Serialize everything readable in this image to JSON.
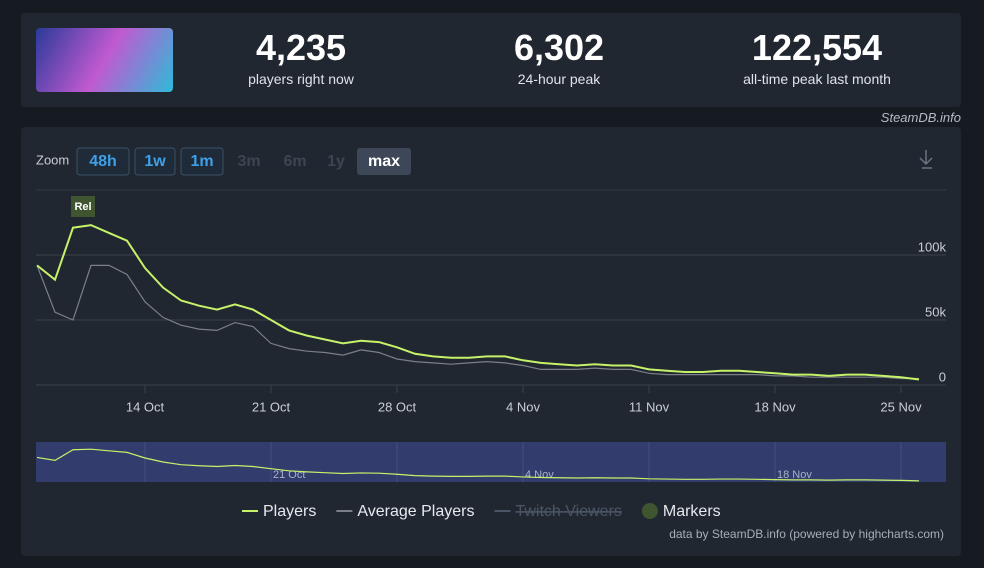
{
  "stats": [
    {
      "value": "4,235",
      "label": "players right now"
    },
    {
      "value": "6,302",
      "label": "24-hour peak"
    },
    {
      "value": "122,554",
      "label": "all-time peak last month"
    }
  ],
  "source": "SteamDB.info",
  "zoom": {
    "label": "Zoom",
    "buttons": [
      "48h",
      "1w",
      "1m",
      "3m",
      "6m",
      "1y",
      "max"
    ]
  },
  "credit": "data by SteamDB.info (powered by highcharts.com)",
  "chart_data": {
    "type": "line",
    "x": [
      "8 Oct",
      "9 Oct",
      "10 Oct",
      "11 Oct",
      "12 Oct",
      "13 Oct",
      "14 Oct",
      "15 Oct",
      "16 Oct",
      "17 Oct",
      "18 Oct",
      "19 Oct",
      "20 Oct",
      "21 Oct",
      "22 Oct",
      "23 Oct",
      "24 Oct",
      "25 Oct",
      "26 Oct",
      "27 Oct",
      "28 Oct",
      "29 Oct",
      "30 Oct",
      "31 Oct",
      "1 Nov",
      "2 Nov",
      "3 Nov",
      "4 Nov",
      "5 Nov",
      "6 Nov",
      "7 Nov",
      "8 Nov",
      "9 Nov",
      "10 Nov",
      "11 Nov",
      "12 Nov",
      "13 Nov",
      "14 Nov",
      "15 Nov",
      "16 Nov",
      "17 Nov",
      "18 Nov",
      "19 Nov",
      "20 Nov",
      "21 Nov",
      "22 Nov",
      "23 Nov",
      "24 Nov",
      "25 Nov",
      "26 Nov"
    ],
    "series": [
      {
        "name": "Players",
        "color": "#c6f26a",
        "values": [
          92000,
          81000,
          121000,
          123000,
          117000,
          111000,
          90000,
          75000,
          65000,
          61000,
          58000,
          62000,
          58000,
          50000,
          42000,
          38000,
          35000,
          32000,
          34000,
          33000,
          29000,
          24000,
          22000,
          21000,
          21000,
          22000,
          22000,
          19000,
          17000,
          16000,
          15000,
          16000,
          15000,
          15000,
          12000,
          11000,
          10000,
          10000,
          11000,
          11000,
          10000,
          9000,
          8000,
          8000,
          7000,
          8000,
          8000,
          7000,
          6000,
          4235
        ]
      },
      {
        "name": "Average Players",
        "color": "#7a7f88",
        "values": [
          92000,
          56000,
          50000,
          92000,
          92000,
          85000,
          64000,
          52000,
          46000,
          43000,
          42000,
          48000,
          45000,
          32000,
          28000,
          26000,
          25000,
          23000,
          27000,
          25000,
          20000,
          18000,
          17000,
          16000,
          17000,
          18000,
          17000,
          15000,
          12000,
          12000,
          12000,
          13000,
          12000,
          12000,
          9000,
          8000,
          8000,
          8000,
          8000,
          8000,
          8000,
          7000,
          7000,
          6000,
          6000,
          6000,
          6000,
          6000,
          5000,
          5000
        ]
      }
    ],
    "legend_extra": [
      {
        "name": "Twitch Viewers",
        "color": "#4a5566",
        "hidden": true
      },
      {
        "name": "Markers",
        "color": "#3f5530"
      }
    ],
    "annotation": {
      "text": "Rel",
      "x": "11 Oct"
    },
    "ylim": [
      0,
      150000
    ],
    "yticks": [
      0,
      {
        "value": 50000,
        "label": "50k"
      },
      {
        "value": 100000,
        "label": "100k"
      }
    ],
    "xticks": [
      "14 Oct",
      "21 Oct",
      "28 Oct",
      "4 Nov",
      "11 Nov",
      "18 Nov",
      "25 Nov"
    ],
    "grid": true
  }
}
